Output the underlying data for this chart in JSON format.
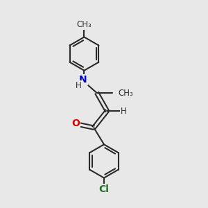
{
  "background_color": "#e8e8e8",
  "bond_color": "#2a2a2a",
  "atom_colors": {
    "N": "#0000cc",
    "O": "#dd0000",
    "Cl": "#207020",
    "H": "#2a2a2a"
  },
  "bond_width": 1.5,
  "font_size_atom": 10,
  "font_size_small": 8.5
}
